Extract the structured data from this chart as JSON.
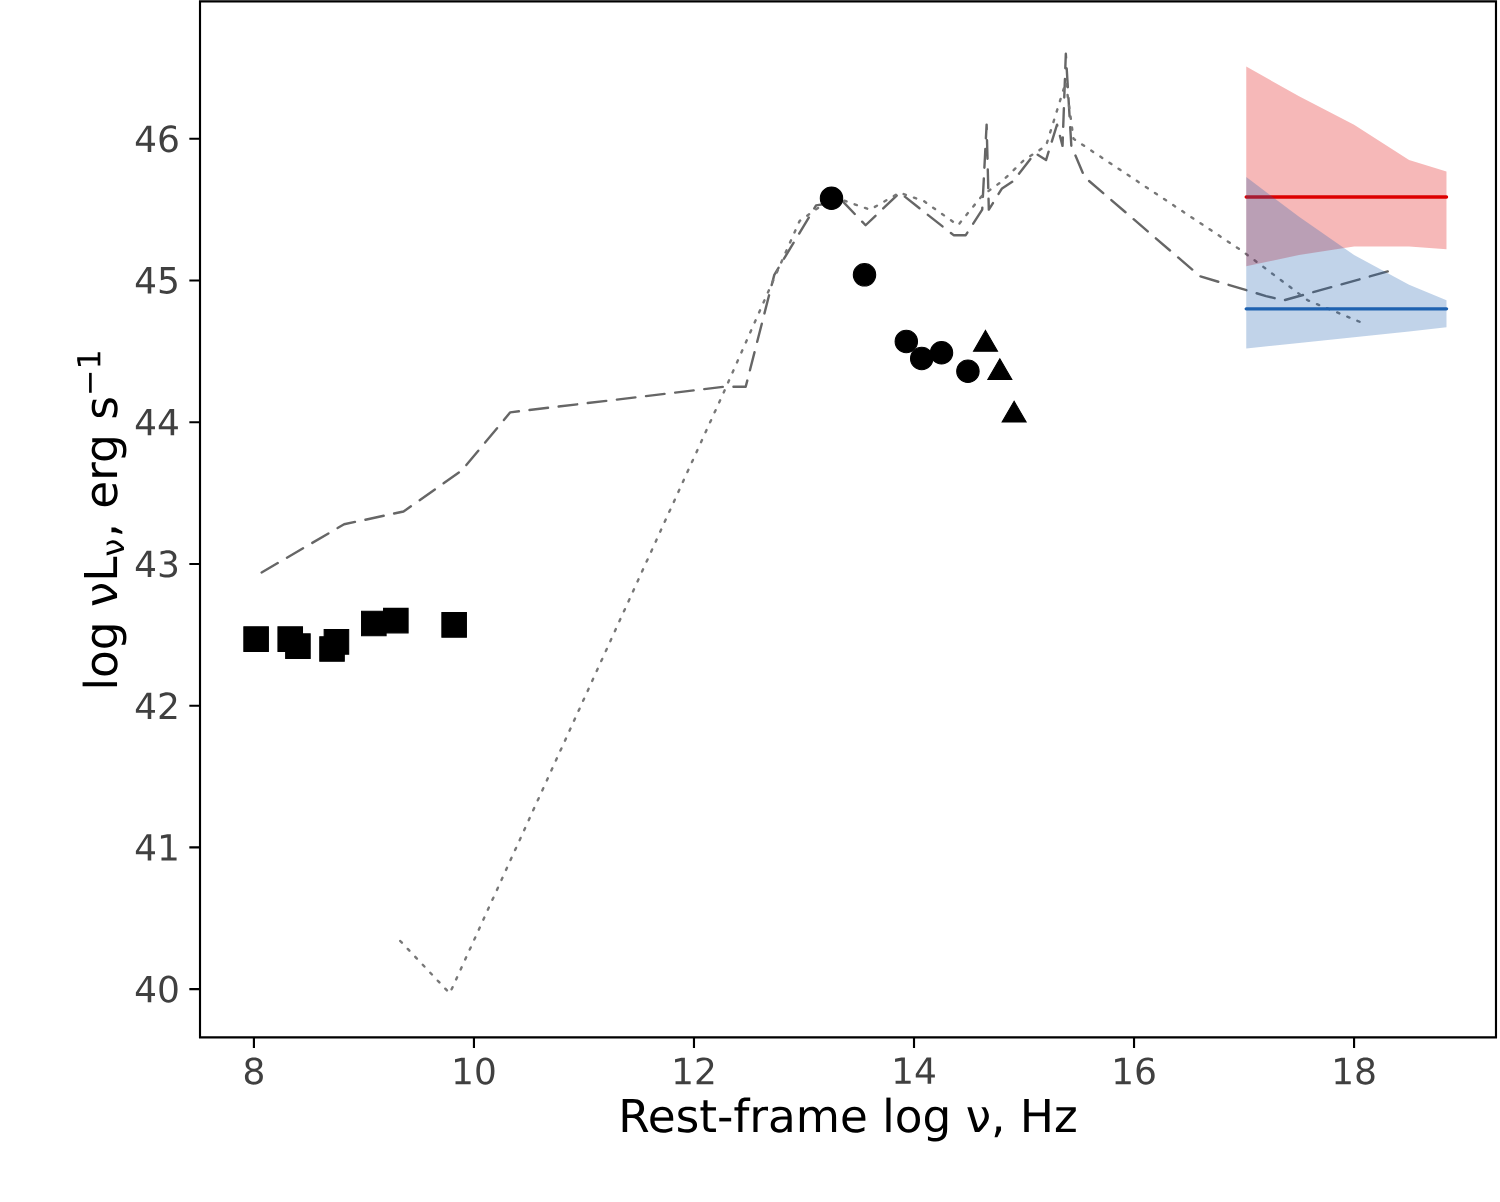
{
  "chart_data": {
    "type": "scatter",
    "xlabel": "Rest-frame log ν, Hz",
    "ylabel": "log νL$_{ν}$, erg s$^{−1}$",
    "xlim": [
      7.51,
      19.29
    ],
    "ylim": [
      39.66,
      46.97
    ],
    "xticks": [
      8,
      10,
      12,
      14,
      16,
      18
    ],
    "yticks": [
      40,
      41,
      42,
      43,
      44,
      45,
      46
    ],
    "series": [
      {
        "type": "line",
        "color": "#666666",
        "line_style": "dashed",
        "marker": "none",
        "x": [
          8.07,
          8.82,
          9.36,
          9.89,
          10.33,
          12.27,
          12.47,
          12.73,
          13.11,
          13.35,
          13.56,
          13.87,
          14.36,
          14.47,
          14.62,
          14.66,
          14.68,
          14.8,
          14.9,
          15.0,
          15.1,
          15.2,
          15.3,
          15.35,
          15.38,
          15.43,
          15.55,
          16.6,
          17.2,
          17.36,
          18.38
        ],
        "values": [
          42.94,
          43.28,
          43.37,
          43.66,
          44.07,
          44.25,
          44.25,
          45.04,
          45.53,
          45.56,
          45.39,
          45.62,
          45.32,
          45.32,
          45.5,
          46.1,
          45.5,
          45.65,
          45.7,
          45.8,
          45.9,
          45.85,
          46.1,
          45.95,
          46.6,
          45.95,
          45.73,
          45.03,
          44.89,
          44.86,
          45.08
        ]
      },
      {
        "type": "line",
        "color": "#777777",
        "line_style": "dotted",
        "marker": "none",
        "x": [
          9.33,
          9.78,
          12.27,
          12.96,
          13.27,
          13.6,
          13.87,
          14.09,
          14.4,
          14.62,
          14.8,
          15.0,
          15.2,
          15.38,
          15.45,
          16.98,
          17.58,
          18.11
        ],
        "values": [
          40.34,
          39.97,
          44.21,
          45.42,
          45.59,
          45.5,
          45.62,
          45.56,
          45.39,
          45.6,
          45.7,
          45.85,
          45.95,
          46.4,
          46.0,
          45.21,
          44.86,
          44.69
        ]
      },
      {
        "color": "#000000",
        "marker": "square",
        "x": [
          8.02,
          8.33,
          8.4,
          8.71,
          8.75,
          9.09,
          9.29,
          9.82
        ],
        "values": [
          42.47,
          42.47,
          42.42,
          42.4,
          42.45,
          42.58,
          42.6,
          42.57
        ]
      },
      {
        "color": "#000000",
        "marker": "circle",
        "x": [
          13.25,
          13.55,
          13.93,
          14.07,
          14.25,
          14.49
        ],
        "values": [
          45.58,
          45.04,
          44.57,
          44.45,
          44.49,
          44.36
        ]
      },
      {
        "color": "#000000",
        "marker": "triangle",
        "x": [
          14.65,
          14.78,
          14.91
        ],
        "values": [
          44.55,
          44.35,
          44.05
        ]
      },
      {
        "type": "line",
        "color": "#dd0000",
        "line_style": "solid",
        "marker": "none",
        "x": [
          17.02,
          17.5,
          18.0,
          18.5,
          18.84
        ],
        "values": [
          45.59,
          45.59,
          45.59,
          45.59,
          45.59
        ],
        "lower": [
          45.1,
          45.18,
          45.24,
          45.24,
          45.22
        ],
        "upper": [
          46.51,
          46.3,
          46.1,
          45.85,
          45.77
        ]
      },
      {
        "type": "line",
        "color": "#1f62b0",
        "line_style": "solid",
        "marker": "none",
        "x": [
          17.02,
          17.5,
          18.0,
          18.5,
          18.84
        ],
        "values": [
          44.8,
          44.8,
          44.8,
          44.8,
          44.8
        ],
        "lower": [
          44.52,
          44.56,
          44.6,
          44.64,
          44.67
        ],
        "upper": [
          45.73,
          45.45,
          45.18,
          44.97,
          44.86
        ]
      }
    ]
  }
}
